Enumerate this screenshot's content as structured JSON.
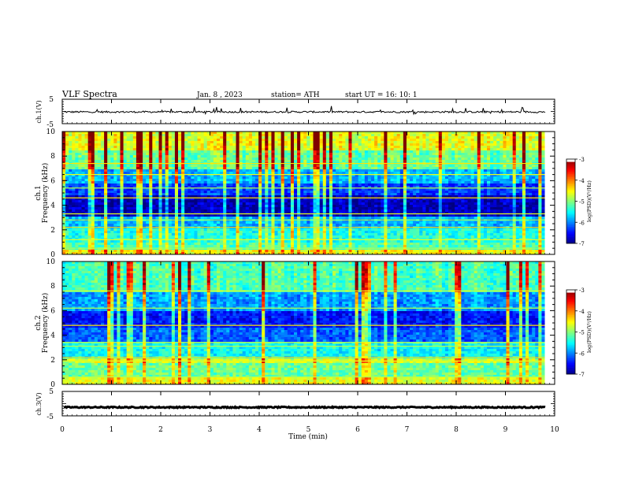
{
  "header": {
    "title": "VLF  Spectra",
    "date": "Jan. 8  , 2023",
    "station": "station= ATH",
    "start": "start  UT  =   16: 10: 1"
  },
  "chart_data": [
    {
      "type": "line",
      "panel": "waveform-ch1",
      "ylabel": "ch.1(V)",
      "ylim": [
        -5,
        5
      ],
      "yticks": [
        "5",
        "-5"
      ],
      "xlim": [
        0,
        10
      ],
      "baseline": -0.2,
      "noise_amplitude": 0.35,
      "spike_amplitude": 1.6,
      "color": "#000000"
    },
    {
      "type": "heatmap",
      "panel": "spectrogram-ch1",
      "ylabel": "Frequency (kHz)",
      "channel_label": "ch.1",
      "ylim": [
        0,
        10
      ],
      "yticks": [
        "0",
        "2",
        "4",
        "6",
        "8",
        "10"
      ],
      "xlim": [
        0,
        9.8
      ],
      "bands": [
        {
          "range": [
            0,
            0.4
          ],
          "level": 0.62
        },
        {
          "range": [
            0.4,
            1.0
          ],
          "level": 0.45
        },
        {
          "range": [
            1.0,
            2.2
          ],
          "level": 0.4
        },
        {
          "range": [
            2.2,
            3.0
          ],
          "level": 0.3
        },
        {
          "range": [
            3.0,
            4.8
          ],
          "level": 0.06
        },
        {
          "range": [
            4.8,
            5.8
          ],
          "level": 0.18
        },
        {
          "range": [
            5.8,
            7.0
          ],
          "level": 0.3
        },
        {
          "range": [
            7.0,
            8.5
          ],
          "level": 0.48
        },
        {
          "range": [
            8.5,
            10.0
          ],
          "level": 0.6
        }
      ],
      "lines_khz": [
        0.5,
        1.2,
        2.2,
        2.8,
        3.3,
        4.6,
        5.4,
        6.5,
        7.4
      ],
      "colorbar": {
        "label": "log(PSD)(V²/Hz)",
        "ticks": [
          "-3",
          "-4",
          "-5",
          "-6",
          "-7"
        ],
        "range": [
          -7,
          -3
        ]
      }
    },
    {
      "type": "heatmap",
      "panel": "spectrogram-ch2",
      "ylabel": "Frequency (kHz)",
      "channel_label": "ch.2",
      "ylim": [
        0,
        10
      ],
      "yticks": [
        "0",
        "2",
        "4",
        "6",
        "8",
        "10"
      ],
      "xlim": [
        0,
        9.8
      ],
      "bands": [
        {
          "range": [
            0,
            0.6
          ],
          "level": 0.6
        },
        {
          "range": [
            0.6,
            1.8
          ],
          "level": 0.48
        },
        {
          "range": [
            1.8,
            2.2
          ],
          "level": 0.58
        },
        {
          "range": [
            2.2,
            3.4
          ],
          "level": 0.38
        },
        {
          "range": [
            3.4,
            4.6
          ],
          "level": 0.22
        },
        {
          "range": [
            4.6,
            6.0
          ],
          "level": 0.14
        },
        {
          "range": [
            6.0,
            7.5
          ],
          "level": 0.28
        },
        {
          "range": [
            7.5,
            10.0
          ],
          "level": 0.45
        }
      ],
      "lines_khz": [
        0.6,
        1.9,
        2.2,
        3.1,
        3.4,
        4.8,
        6.2,
        7.6
      ],
      "colorbar": {
        "label": "log(PSD)(V²/Hz)",
        "ticks": [
          "-3",
          "-4",
          "-5",
          "-6",
          "-7"
        ],
        "range": [
          -7,
          -3
        ]
      }
    },
    {
      "type": "line",
      "panel": "waveform-ch3",
      "ylabel": "ch.3(V)",
      "ylim": [
        -5,
        5
      ],
      "yticks": [
        "5",
        "-5"
      ],
      "xlim": [
        0,
        10
      ],
      "baseline": -1.5,
      "noise_amplitude": 0.25,
      "spike_amplitude": 0,
      "color": "#000000",
      "xlabel": "Time  (min)",
      "xticks": [
        "0",
        "1",
        "2",
        "3",
        "4",
        "5",
        "6",
        "7",
        "8",
        "9",
        "10"
      ]
    }
  ]
}
